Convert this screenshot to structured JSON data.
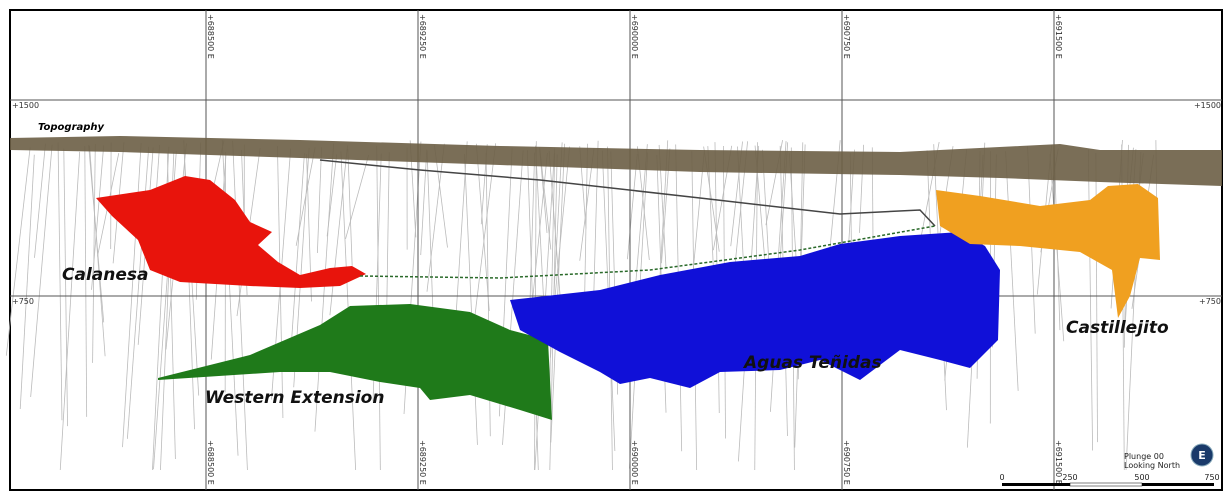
{
  "grid": {
    "eastings": [
      "+688500 E",
      "+689250 E",
      "+690000 E",
      "+690750 E",
      "+691500 E"
    ],
    "elevations": [
      "+1500",
      "+750"
    ]
  },
  "labels": {
    "topography": "Topography",
    "deposits": [
      "Calanesa",
      "Western Extension",
      "Aguas Teñidas",
      "Castillejito"
    ]
  },
  "view": {
    "plunge": "Plunge 00",
    "direction": "Looking North"
  },
  "scale_bar": {
    "labels": [
      "0",
      "250",
      "500",
      "750"
    ]
  },
  "compass": "E"
}
